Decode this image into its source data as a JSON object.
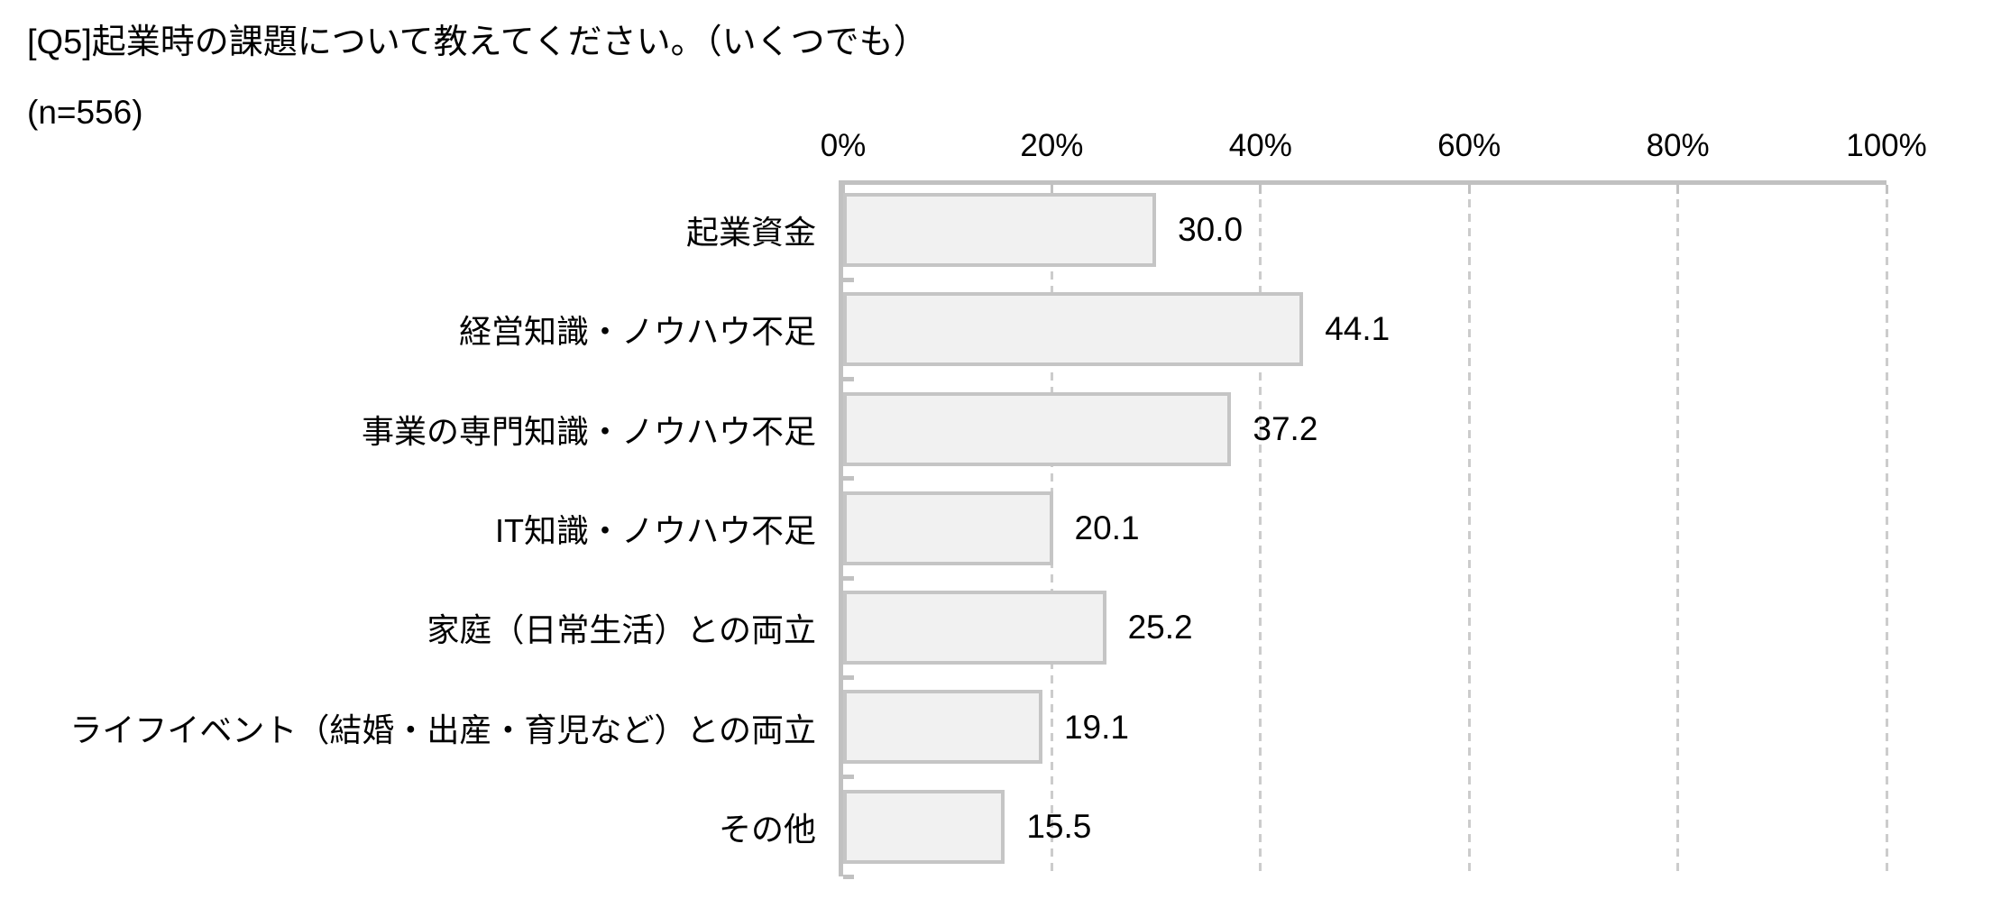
{
  "page": {
    "title": "[Q5]起業時の課題について教えてください。（いくつでも）",
    "sample_size": "(n=556)"
  },
  "chart_data": {
    "type": "bar",
    "orientation": "horizontal",
    "title": "[Q5]起業時の課題について教えてください。（いくつでも）",
    "subtitle": "(n=556)",
    "categories": [
      "起業資金",
      "経営知識・ノウハウ不足",
      "事業の専門知識・ノウハウ不足",
      "IT知識・ノウハウ不足",
      "家庭（日常生活）との両立",
      "ライフイベント（結婚・出産・育児など）との両立",
      "その他"
    ],
    "values": [
      30.0,
      44.1,
      37.2,
      20.1,
      25.2,
      19.1,
      15.5
    ],
    "value_labels": [
      "30.0",
      "44.1",
      "37.2",
      "20.1",
      "25.2",
      "19.1",
      "15.5"
    ],
    "xlabel": "",
    "ylabel": "",
    "x_axis": {
      "range": [
        0,
        100
      ],
      "tick_values": [
        0,
        20,
        40,
        60,
        80,
        100
      ],
      "tick_labels": [
        "0%",
        "20%",
        "40%",
        "60%",
        "80%",
        "100%"
      ]
    },
    "grid": "vertical-dashed",
    "legend": "none",
    "colors": {
      "bar_fill": "#f1f1f1",
      "bar_border": "#c5c5c5",
      "axis": "#c1c1c1",
      "gridline": "#cccccc",
      "text": "#000000"
    }
  }
}
